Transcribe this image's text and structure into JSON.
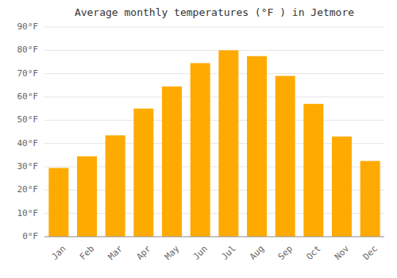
{
  "chart_data": {
    "type": "bar",
    "title": "Average monthly temperatures (°F ) in Jetmore",
    "categories": [
      "Jan",
      "Feb",
      "Mar",
      "Apr",
      "May",
      "Jun",
      "Jul",
      "Aug",
      "Sep",
      "Oct",
      "Nov",
      "Dec"
    ],
    "values": [
      29.5,
      34.5,
      43.5,
      55.0,
      64.5,
      74.5,
      80.0,
      77.5,
      69.0,
      57.0,
      43.0,
      32.5
    ],
    "color": "#FFAA00",
    "ylim": [
      0,
      90
    ],
    "yticks": [
      {
        "value": 0,
        "label": "0°F"
      },
      {
        "value": 10,
        "label": "10°F"
      },
      {
        "value": 20,
        "label": "20°F"
      },
      {
        "value": 30,
        "label": "30°F"
      },
      {
        "value": 40,
        "label": "40°F"
      },
      {
        "value": 50,
        "label": "50°F"
      },
      {
        "value": 60,
        "label": "60°F"
      },
      {
        "value": 70,
        "label": "70°F"
      },
      {
        "value": 80,
        "label": "80°F"
      },
      {
        "value": 90,
        "label": "90°F"
      }
    ],
    "grid": true
  }
}
